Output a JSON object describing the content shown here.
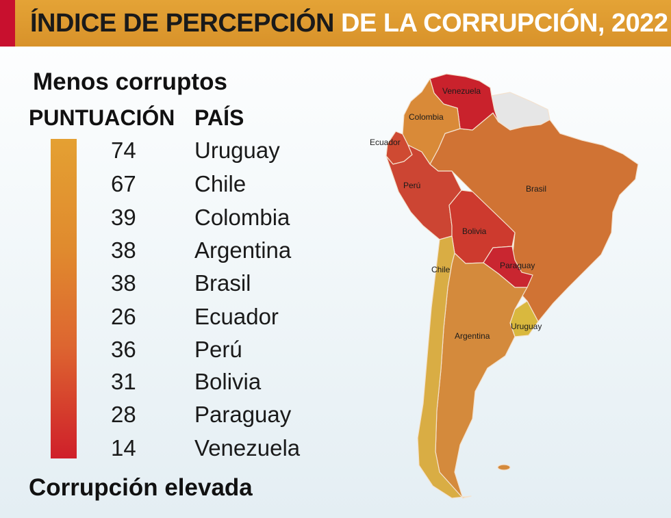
{
  "header": {
    "title_part1": "ÍNDICE DE PERCEPCIÓN",
    "title_part2": "DE LA CORRUPCIÓN, 2022",
    "colors": {
      "band": "#dd9b30",
      "accent": "#c8102e"
    }
  },
  "legend": {
    "top_label": "Menos corruptos",
    "score_header": "PUNTUACIÓN",
    "country_header": "PAÍS",
    "bottom_label": "Corrupción elevada",
    "gradient_colors": [
      "#e4a032",
      "#e08a2e",
      "#dd6530",
      "#cf1f2a"
    ]
  },
  "rows": [
    {
      "score": "74",
      "country": "Uruguay"
    },
    {
      "score": "67",
      "country": "Chile"
    },
    {
      "score": "39",
      "country": "Colombia"
    },
    {
      "score": "38",
      "country": "Argentina"
    },
    {
      "score": "38",
      "country": "Brasil"
    },
    {
      "score": "26",
      "country": "Ecuador"
    },
    {
      "score": "36",
      "country": "Perú"
    },
    {
      "score": "31",
      "country": "Bolivia"
    },
    {
      "score": "28",
      "country": "Paraguay"
    },
    {
      "score": "14",
      "country": "Venezuela"
    }
  ],
  "map": {
    "labels": {
      "venezuela": "Venezuela",
      "colombia": "Colombia",
      "ecuador": "Ecuador",
      "peru": "Perú",
      "brasil": "Brasil",
      "bolivia": "Bolivia",
      "paraguay": "Paraguay",
      "chile": "Chile",
      "argentina": "Argentina",
      "uruguay": "Uruguay"
    },
    "region_colors": {
      "venezuela": "#c9222c",
      "colombia": "#d98a38",
      "ecuador": "#cf4a32",
      "peru": "#cc4533",
      "brasil": "#d07334",
      "bolivia": "#cd3a2e",
      "paraguay": "#c92630",
      "chile": "#d9ad44",
      "argentina": "#d48a3c",
      "uruguay": "#d9b83e",
      "guianas": "#e6e6e6"
    }
  }
}
